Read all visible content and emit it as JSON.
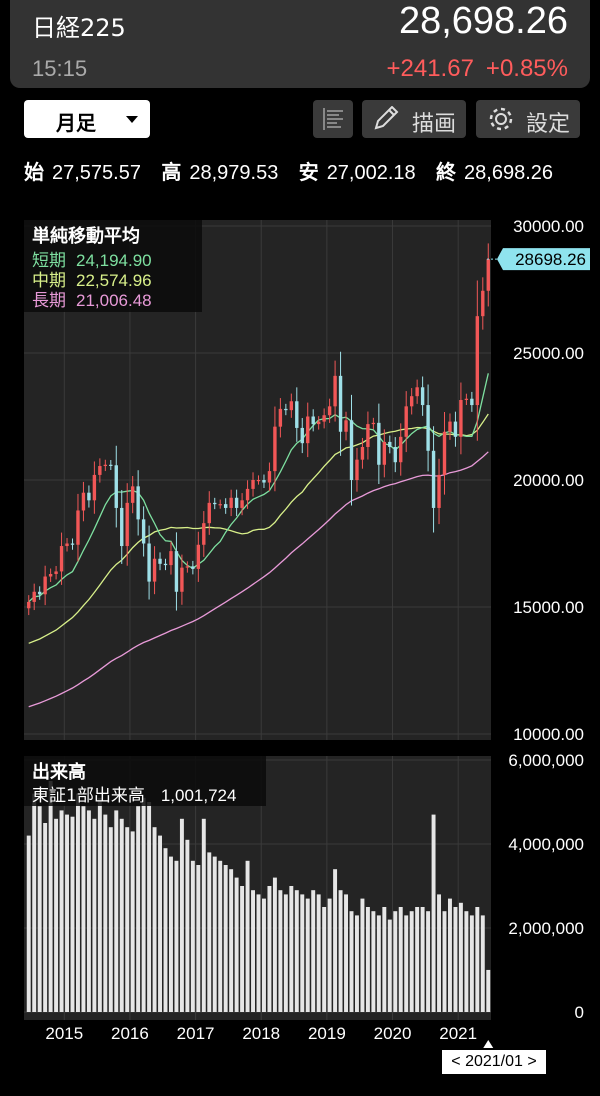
{
  "header": {
    "title": "日経225",
    "price": "28,698.26",
    "time": "15:15",
    "change": "+241.67",
    "change_pct": "+0.85%"
  },
  "toolbar": {
    "period": "月足",
    "draw_label": "描画",
    "settings_label": "設定"
  },
  "ohlc": {
    "open_label": "始",
    "open": "27,575.57",
    "high_label": "高",
    "high": "28,979.53",
    "low_label": "安",
    "low": "27,002.18",
    "close_label": "終",
    "close": "28,698.26"
  },
  "ma_legend": {
    "title": "単純移動平均",
    "short_label": "短期",
    "short_value": "24,194.90",
    "mid_label": "中期",
    "mid_value": "22,574.96",
    "long_label": "長期",
    "long_value": "21,006.48"
  },
  "volume_legend": {
    "title": "出来高",
    "label": "東証1部出来高",
    "value": "1,001,724"
  },
  "current_price_tag": "28698.26",
  "date_badge": "< 2021/01 >",
  "colors": {
    "up": "#f25757",
    "down": "#9fe0e8",
    "ma_short": "#7ee0a0",
    "ma_mid": "#d8f08a",
    "ma_long": "#e89ad8",
    "volume": "#e6e6e6",
    "price_tag": "#8fe3ee"
  },
  "chart_data": [
    {
      "type": "candlestick",
      "title": "",
      "price_axis": {
        "ylim": [
          10000,
          30000
        ],
        "ticks": [
          30000,
          25000,
          20000,
          15000,
          10000
        ],
        "tick_labels": [
          "30000.00",
          "25000.00",
          "20000.00",
          "15000.00",
          "10000.00"
        ]
      },
      "x_ticks": [
        "2015",
        "2016",
        "2017",
        "2018",
        "2019",
        "2020",
        "2021"
      ],
      "x_start": "2014-06",
      "x_end": "2021-01",
      "closes": [
        15200,
        15600,
        15500,
        16200,
        16300,
        16400,
        17400,
        17500,
        17450,
        18800,
        19500,
        19200,
        20200,
        20550,
        20600,
        20580,
        18900,
        17400,
        19100,
        19750,
        18450,
        17500,
        16000,
        16900,
        16700,
        16650,
        17200,
        15600,
        16550,
        16600,
        16500,
        17450,
        18300,
        19100,
        19050,
        19050,
        18900,
        19300,
        18900,
        19200,
        19650,
        20000,
        20000,
        19900,
        20350,
        22100,
        22800,
        22750,
        23100,
        22050,
        21450,
        22500,
        22200,
        22300,
        22550,
        22900,
        24100,
        21900,
        22350,
        20000,
        20800,
        21300,
        22200,
        22250,
        20600,
        21500,
        21300,
        20700,
        21700,
        22900,
        23300,
        23650,
        22950,
        21150,
        18900,
        20200,
        21900,
        22300,
        21700,
        23150,
        23200,
        22950,
        26450,
        27450,
        28698
      ],
      "volume_axis": {
        "ylim": [
          0,
          6000000
        ],
        "ticks": [
          6000000,
          4000000,
          2000000,
          0
        ],
        "tick_labels": [
          "6,000,000",
          "4,000,000",
          "2,000,000",
          "0"
        ]
      },
      "volumes": [
        4200000,
        5200000,
        4900000,
        4500000,
        5500000,
        4600000,
        4800000,
        4700000,
        4650000,
        5200000,
        4900000,
        4800000,
        4600000,
        5100000,
        4700000,
        4400000,
        4800000,
        4600000,
        4400000,
        4300000,
        4900000,
        5100000,
        5000000,
        4400000,
        4200000,
        3900000,
        3700000,
        3600000,
        4600000,
        4100000,
        3600000,
        3500000,
        4600000,
        3800000,
        3700000,
        3600000,
        3500000,
        3400000,
        3200000,
        3000000,
        3600000,
        2900000,
        2800000,
        2700000,
        3000000,
        3200000,
        2900000,
        2800000,
        3000000,
        2900000,
        2800000,
        2700000,
        2900000,
        2800000,
        2500000,
        2700000,
        3400000,
        2900000,
        2800000,
        2400000,
        2300000,
        2700000,
        2500000,
        2400000,
        2300000,
        2500000,
        2200000,
        2400000,
        2500000,
        2300000,
        2400000,
        2500000,
        2500000,
        2400000,
        4700000,
        2800000,
        2400000,
        2700000,
        2500000,
        2600000,
        2400000,
        2300000,
        2500000,
        2300000,
        1001724
      ]
    }
  ]
}
